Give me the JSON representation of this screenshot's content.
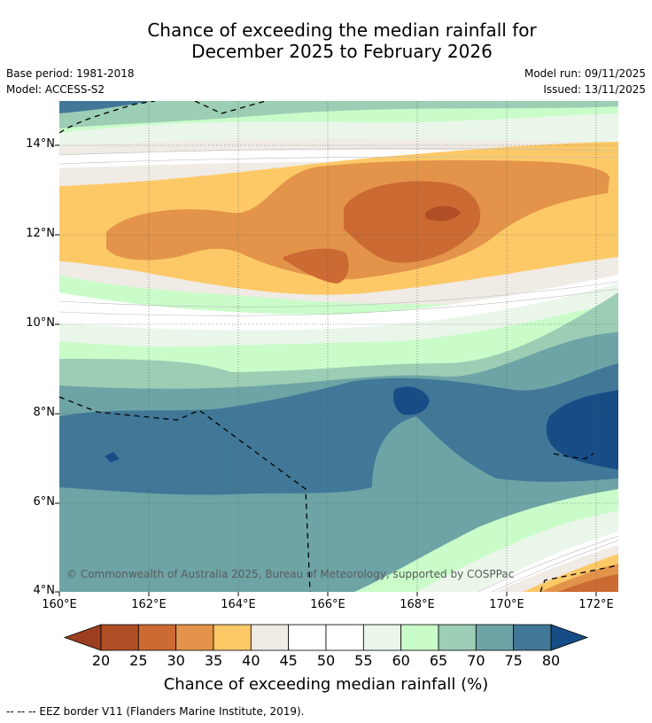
{
  "title": {
    "line1": "Chance of exceeding the median rainfall for",
    "line2": "December 2025 to February 2026"
  },
  "meta": {
    "base_period": "Base period: 1981-2018",
    "model": "Model: ACCESS-S2",
    "model_run": "Model run: 09/11/2025",
    "issued": "Issued: 13/11/2025"
  },
  "axes": {
    "y_labels": [
      "14°N",
      "12°N",
      "10°N",
      "8°N",
      "6°N",
      "4°N"
    ],
    "x_labels": [
      "160°E",
      "162°E",
      "164°E",
      "166°E",
      "168°E",
      "170°E",
      "172°E"
    ]
  },
  "copyright": "© Commonwealth of Australia 2025, Bureau of Meteorology, supported by COSPPac",
  "colorbar": {
    "title": "Chance of exceeding median rainfall (%)",
    "ticks": [
      "20",
      "25",
      "30",
      "35",
      "40",
      "45",
      "50",
      "55",
      "60",
      "65",
      "70",
      "75",
      "80"
    ],
    "colors": [
      "#9c3f20",
      "#b04e26",
      "#cc6a33",
      "#e3944a",
      "#fdc967",
      "#f0ebe5",
      "#ffffff",
      "#ffffff",
      "#eaf6ea",
      "#c9fcc9",
      "#9ccdb5",
      "#6ea4a6",
      "#417898",
      "#174d86"
    ]
  },
  "footnote": "--  --  -- EEZ border V11 (Flanders Marine Institute, 2019)."
}
